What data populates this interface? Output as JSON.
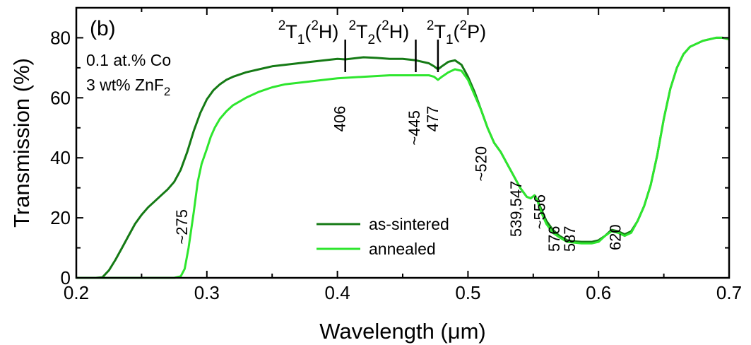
{
  "chart_data": {
    "type": "line",
    "panel_label": "(b)",
    "xlabel": "Wavelength (μm)",
    "ylabel": "Transmission (%)",
    "xlim": [
      0.2,
      0.7
    ],
    "ylim": [
      0,
      90
    ],
    "xticks": [
      0.2,
      0.3,
      0.4,
      0.5,
      0.6,
      0.7
    ],
    "xtick_labels": [
      "0.2",
      "0.3",
      "0.4",
      "0.5",
      "0.6",
      "0.7"
    ],
    "yticks": [
      0,
      20,
      40,
      60,
      80
    ],
    "ytick_labels": [
      "0",
      "20",
      "40",
      "60",
      "80"
    ],
    "grid": false,
    "legend": {
      "position": "bottom-center"
    },
    "info_lines": [
      {
        "text": "0.1 at.% Co",
        "sub": ""
      },
      {
        "text": "3 wt% ZnF",
        "sub": "2"
      }
    ],
    "series": [
      {
        "name": "as-sintered",
        "color": "#157a15",
        "x": [
          0.2,
          0.215,
          0.22,
          0.225,
          0.23,
          0.235,
          0.24,
          0.245,
          0.25,
          0.255,
          0.26,
          0.265,
          0.27,
          0.275,
          0.28,
          0.285,
          0.29,
          0.295,
          0.3,
          0.305,
          0.31,
          0.315,
          0.32,
          0.33,
          0.34,
          0.35,
          0.36,
          0.38,
          0.4,
          0.406,
          0.42,
          0.43,
          0.44,
          0.45,
          0.46,
          0.47,
          0.474,
          0.477,
          0.48,
          0.485,
          0.49,
          0.495,
          0.5,
          0.505,
          0.51,
          0.515,
          0.52,
          0.525,
          0.53,
          0.535,
          0.54,
          0.545,
          0.548,
          0.551,
          0.553,
          0.556,
          0.56,
          0.565,
          0.57,
          0.576,
          0.58,
          0.587,
          0.595,
          0.6,
          0.605,
          0.61,
          0.615,
          0.62,
          0.625,
          0.63,
          0.635,
          0.64,
          0.645,
          0.65,
          0.655,
          0.66,
          0.665,
          0.67,
          0.68,
          0.69,
          0.695,
          0.7
        ],
        "y": [
          0,
          0,
          0.2,
          2.5,
          6,
          10,
          14,
          18,
          21,
          23.5,
          25.5,
          27.5,
          29.5,
          32,
          36,
          42,
          49,
          55,
          59.5,
          62.5,
          64.5,
          66,
          67,
          68.5,
          69.5,
          70.5,
          71,
          72,
          73,
          72.8,
          73.5,
          73.3,
          73,
          73,
          72.5,
          71.5,
          70.5,
          69.5,
          70.5,
          72,
          72.5,
          71,
          67,
          62,
          56,
          50,
          45,
          42,
          38,
          34,
          30,
          27,
          26.5,
          27.5,
          26,
          23,
          19,
          16,
          14,
          12.5,
          12.2,
          12,
          12,
          12.5,
          14,
          16,
          15.5,
          14.5,
          15.5,
          19,
          24,
          31,
          41,
          53,
          63,
          70,
          74.5,
          77,
          79,
          80,
          80,
          79.5
        ]
      },
      {
        "name": "annealed",
        "color": "#2ee62e",
        "x": [
          0.2,
          0.27,
          0.275,
          0.28,
          0.283,
          0.286,
          0.29,
          0.293,
          0.296,
          0.3,
          0.303,
          0.306,
          0.31,
          0.315,
          0.32,
          0.33,
          0.34,
          0.35,
          0.36,
          0.38,
          0.4,
          0.42,
          0.44,
          0.46,
          0.47,
          0.474,
          0.477,
          0.48,
          0.485,
          0.49,
          0.495,
          0.5,
          0.505,
          0.51,
          0.515,
          0.52,
          0.525,
          0.53,
          0.535,
          0.54,
          0.545,
          0.548,
          0.551,
          0.553,
          0.556,
          0.56,
          0.565,
          0.57,
          0.576,
          0.58,
          0.587,
          0.595,
          0.6,
          0.605,
          0.61,
          0.615,
          0.62,
          0.625,
          0.63,
          0.635,
          0.64,
          0.645,
          0.65,
          0.655,
          0.66,
          0.665,
          0.67,
          0.68,
          0.69,
          0.695,
          0.7
        ],
        "y": [
          0,
          0,
          0,
          0.5,
          3,
          10,
          22,
          32,
          38,
          43,
          47,
          50,
          53,
          55.5,
          57.5,
          60,
          62,
          63.5,
          64.5,
          65.5,
          66.5,
          67,
          67.5,
          67.5,
          67.5,
          67,
          66,
          67,
          68.5,
          69.5,
          69,
          66,
          61,
          56,
          50,
          45,
          42,
          38,
          34,
          30,
          27,
          26.5,
          27.5,
          26,
          22,
          18,
          15,
          13.5,
          12,
          11.8,
          11.5,
          11.5,
          12,
          14,
          15.5,
          15,
          14,
          15,
          19,
          24,
          31,
          41,
          53,
          63,
          70,
          74.5,
          77,
          79,
          80,
          80,
          79.5
        ]
      }
    ],
    "transitions": [
      {
        "base": "T",
        "pre_sup": "2",
        "sub": "1",
        "state_sup": "2",
        "state": "H",
        "x": 0.406
      },
      {
        "base": "T",
        "pre_sup": "2",
        "sub": "2",
        "state_sup": "2",
        "state": "H",
        "x": 0.46
      },
      {
        "base": "T",
        "pre_sup": "2",
        "sub": "1",
        "state_sup": "2",
        "state": "P",
        "x": 0.477
      }
    ],
    "annotations": [
      {
        "text": "406",
        "x": 0.406,
        "y": 53,
        "rotation": -90
      },
      {
        "text": "~445",
        "x": 0.463,
        "y": 50,
        "rotation": -90
      },
      {
        "text": "477",
        "x": 0.477,
        "y": 53,
        "rotation": -90
      },
      {
        "text": "~520",
        "x": 0.514,
        "y": 38,
        "rotation": -90
      },
      {
        "text": "539,547",
        "x": 0.541,
        "y": 23,
        "rotation": -90
      },
      {
        "text": "~556",
        "x": 0.559,
        "y": 22,
        "rotation": -90
      },
      {
        "text": "576",
        "x": 0.57,
        "y": 13,
        "rotation": -90
      },
      {
        "text": "587",
        "x": 0.582,
        "y": 13,
        "rotation": -90
      },
      {
        "text": "620",
        "x": 0.617,
        "y": 13.5,
        "rotation": -90
      },
      {
        "text": "~275",
        "x": 0.285,
        "y": 17,
        "rotation": -90
      }
    ]
  }
}
